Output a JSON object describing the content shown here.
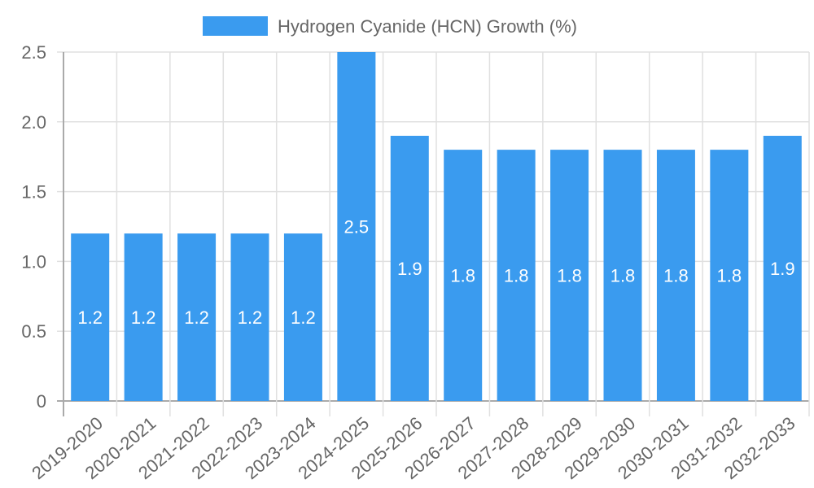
{
  "chart_data": {
    "type": "bar",
    "title": "",
    "legend": [
      "Hydrogen Cyanide (HCN) Growth (%)"
    ],
    "legend_position": "top",
    "categories": [
      "2019-2020",
      "2020-2021",
      "2021-2022",
      "2022-2023",
      "2023-2024",
      "2024-2025",
      "2025-2026",
      "2026-2027",
      "2027-2028",
      "2028-2029",
      "2029-2030",
      "2030-2031",
      "2031-2032",
      "2032-2033"
    ],
    "series": [
      {
        "name": "Hydrogen Cyanide (HCN) Growth (%)",
        "values": [
          1.2,
          1.2,
          1.2,
          1.2,
          1.2,
          2.5,
          1.9,
          1.8,
          1.8,
          1.8,
          1.8,
          1.8,
          1.8,
          1.9
        ],
        "color": "#3a9bef"
      }
    ],
    "data_labels": [
      "1.2",
      "1.2",
      "1.2",
      "1.2",
      "1.2",
      "2.5",
      "1.9",
      "1.8",
      "1.8",
      "1.8",
      "1.8",
      "1.8",
      "1.8",
      "1.9"
    ],
    "xlabel": "",
    "ylabel": "",
    "ylim": [
      0,
      2.5
    ],
    "yticks": [
      "0",
      "0.5",
      "1.0",
      "1.5",
      "2.0",
      "2.5"
    ],
    "grid": true
  },
  "legend": {
    "label": "Hydrogen Cyanide (HCN) Growth (%)",
    "color": "#3a9bef"
  }
}
